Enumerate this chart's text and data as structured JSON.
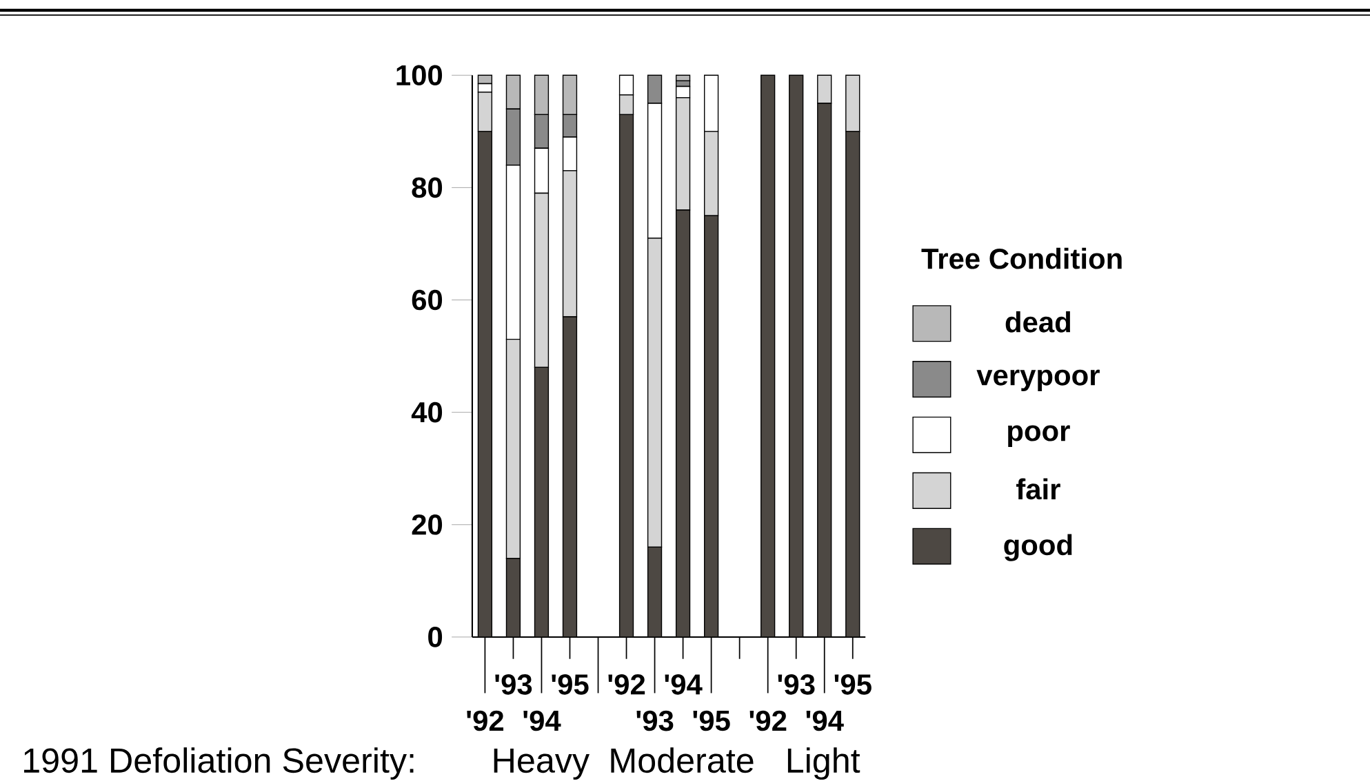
{
  "chart_data": {
    "type": "bar",
    "stacked": true,
    "legend": "right",
    "legend_title": "Tree Condition",
    "categories": [
      "'92",
      "'93",
      "'94",
      "'95",
      "'92",
      "'93",
      "'94",
      "'95",
      "'92",
      "'93",
      "'94",
      "'95"
    ],
    "series": [
      {
        "name": "good",
        "color": "#4d4843",
        "values": [
          90,
          14,
          48,
          57,
          93,
          16,
          76,
          75,
          100,
          100,
          95,
          90
        ]
      },
      {
        "name": "fair",
        "color": "#d4d4d4",
        "values": [
          7,
          39,
          31,
          26,
          3.5,
          55,
          20,
          15,
          0,
          0,
          5,
          10
        ]
      },
      {
        "name": "poor",
        "color": "#ffffff",
        "values": [
          1.5,
          31,
          8,
          6,
          3.5,
          24,
          2,
          10,
          0,
          0,
          0,
          0
        ]
      },
      {
        "name": "verypoor",
        "color": "#8a8a8a",
        "values": [
          0,
          10,
          6,
          4,
          0,
          5,
          1,
          0,
          0,
          0,
          0,
          0
        ]
      },
      {
        "name": "dead",
        "color": "#b8b8b8",
        "values": [
          1.5,
          6,
          7,
          7,
          0,
          0,
          1,
          0,
          0,
          0,
          0,
          0
        ]
      }
    ],
    "ylim": [
      0,
      100
    ],
    "yticks": [
      0,
      20,
      40,
      60,
      80,
      100
    ],
    "annotations": [
      "1991 Defoliation Severity:",
      "Heavy",
      "Moderate",
      "Light"
    ]
  }
}
